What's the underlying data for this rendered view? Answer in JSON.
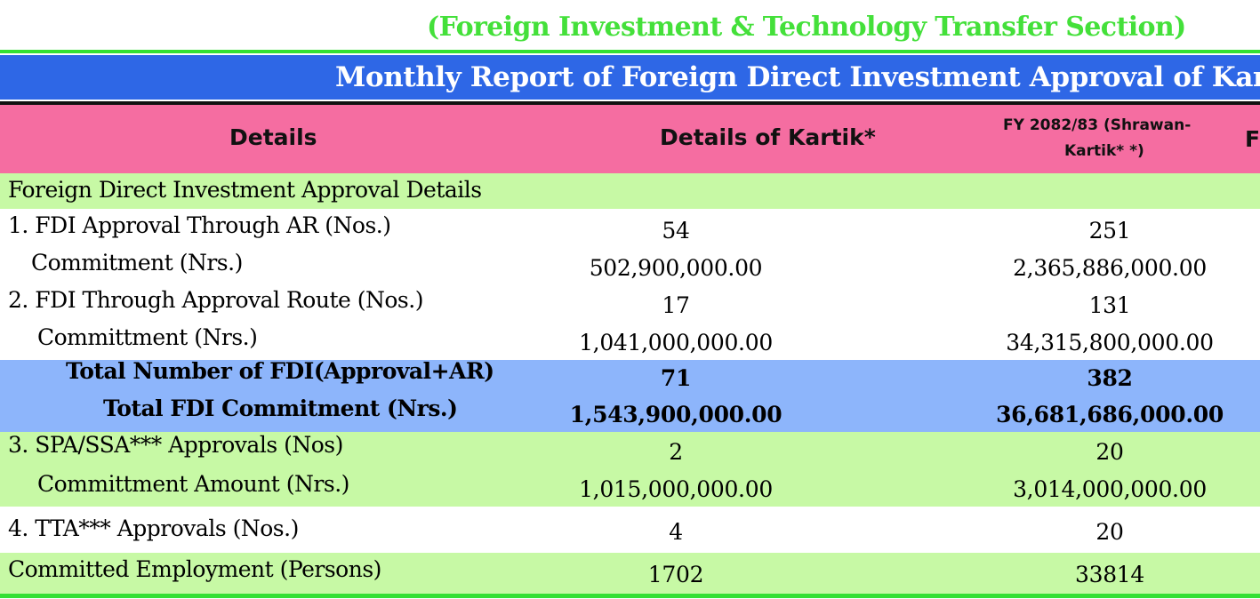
{
  "report": {
    "subtitle": "(Foreign Investment & Technology Transfer Section)",
    "banner_title": "Monthly Report of Foreign Direct Investment Approval of Kartik",
    "colors": {
      "subtitle_green": "#44e03a",
      "banner_blue": "#2e67e6",
      "header_pink": "#f56da1",
      "row_green": "#c7f9a5",
      "total_blue": "#8db5fb"
    }
  },
  "table": {
    "headers": {
      "details": "Details",
      "month": "Details of Kartik*",
      "fy_line1": "FY 2082/83 (Shrawan-",
      "fy_line2": "Kartik* *)",
      "next_partial": "F"
    },
    "section_title": "Foreign Direct Investment  Approval Details",
    "rows": [
      {
        "label": "1. FDI Approval Through AR (Nos.)",
        "month": "54",
        "fy": "251"
      },
      {
        "label": "Commitment (Nrs.)",
        "month": "502,900,000.00",
        "fy": "2,365,886,000.00"
      },
      {
        "label": "2. FDI Through Approval Route (Nos.)",
        "month": "17",
        "fy": "131"
      },
      {
        "label": "Committment (Nrs.)",
        "month": "1,041,000,000.00",
        "fy": "34,315,800,000.00"
      },
      {
        "label": "Total Number of FDI(Approval+AR)",
        "month": "71",
        "fy": "382"
      },
      {
        "label": "Total FDI Commitment (Nrs.)",
        "month": "1,543,900,000.00",
        "fy": "36,681,686,000.00"
      },
      {
        "label": "3. SPA/SSA*** Approvals (Nos)",
        "month": "2",
        "fy": "20"
      },
      {
        "label": "Committment Amount (Nrs.)",
        "month": "1,015,000,000.00",
        "fy": "3,014,000,000.00"
      },
      {
        "label": "4. TTA*** Approvals (Nos.)",
        "month": "4",
        "fy": "20"
      },
      {
        "label": "Committed Employment (Persons)",
        "month": "1702",
        "fy": "33814"
      }
    ]
  }
}
